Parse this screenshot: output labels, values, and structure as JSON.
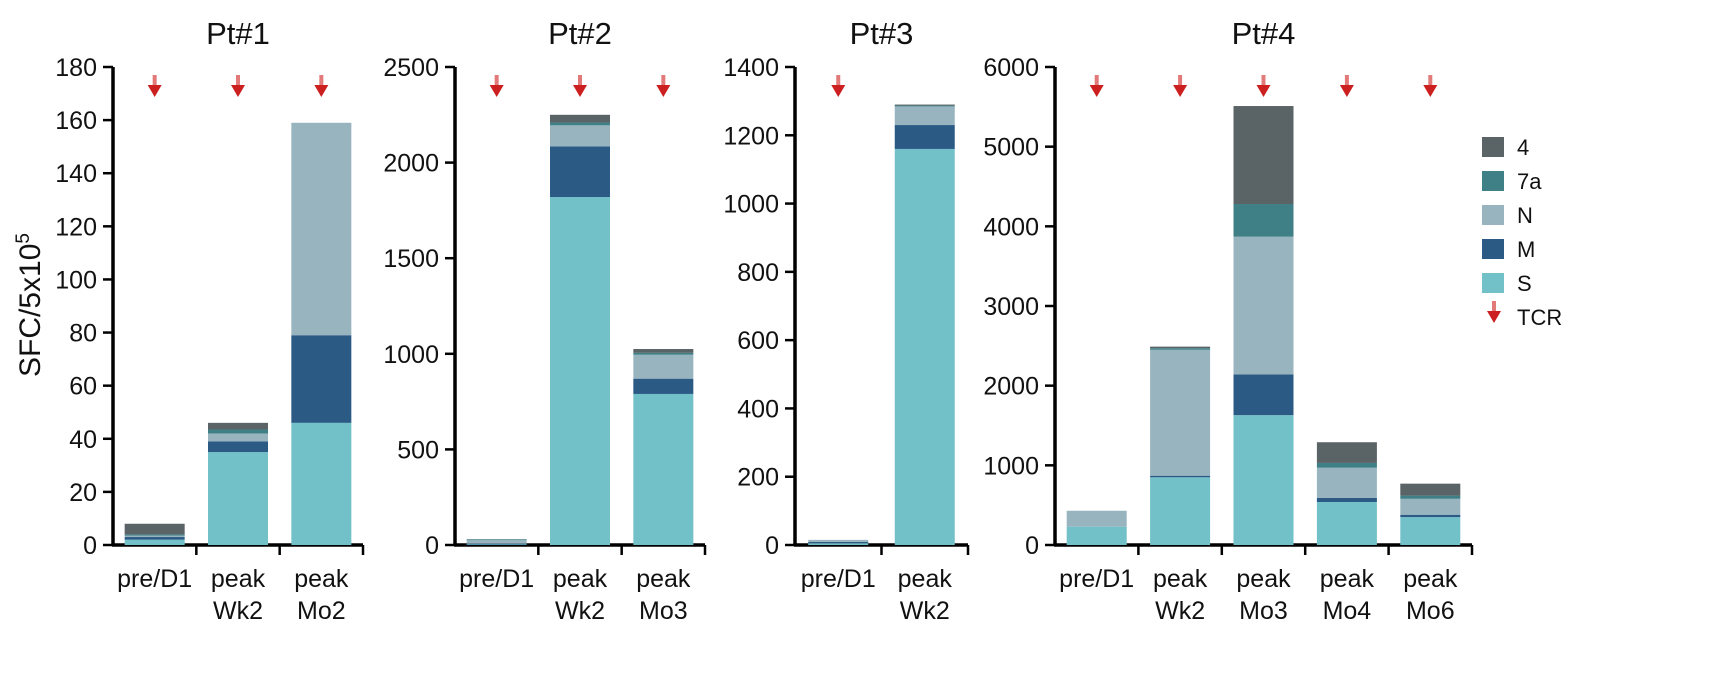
{
  "ylabel": "SFC/5x10",
  "ylabel_sup": "5",
  "colors": {
    "4": "#5a6366",
    "7a": "#3f7f86",
    "N": "#98b5bf",
    "M": "#2b5a85",
    "S": "#72c0c8",
    "TCR": "#cc1f1f"
  },
  "legend": [
    {
      "key": "4",
      "label": "4"
    },
    {
      "key": "7a",
      "label": "7a"
    },
    {
      "key": "N",
      "label": "N"
    },
    {
      "key": "M",
      "label": "M"
    },
    {
      "key": "S",
      "label": "S"
    },
    {
      "key": "TCR",
      "label": "TCR",
      "icon": "down-arrow-icon"
    }
  ],
  "chart_data": [
    {
      "type": "bar",
      "stacked": true,
      "title": "Pt#1",
      "categories": [
        [
          "pre/D1"
        ],
        [
          "peak",
          "Wk2"
        ],
        [
          "peak",
          "Mo2"
        ]
      ],
      "ylim": [
        0,
        180
      ],
      "yticks": [
        0,
        20,
        40,
        60,
        80,
        100,
        120,
        140,
        160,
        180
      ],
      "tcr_markers": [
        0,
        1,
        2
      ],
      "series": [
        {
          "name": "S",
          "values": [
            2,
            35,
            46
          ]
        },
        {
          "name": "M",
          "values": [
            1,
            4,
            33
          ]
        },
        {
          "name": "N",
          "values": [
            0.5,
            3,
            80
          ]
        },
        {
          "name": "7a",
          "values": [
            0.5,
            1.5,
            0
          ]
        },
        {
          "name": "4",
          "values": [
            4,
            2.5,
            0
          ]
        }
      ]
    },
    {
      "type": "bar",
      "stacked": true,
      "title": "Pt#2",
      "categories": [
        [
          "pre/D1"
        ],
        [
          "peak",
          "Wk2"
        ],
        [
          "peak",
          "Mo3"
        ]
      ],
      "ylim": [
        0,
        2500
      ],
      "yticks": [
        0,
        500,
        1000,
        1500,
        2000,
        2500
      ],
      "tcr_markers": [
        0,
        1,
        2
      ],
      "series": [
        {
          "name": "S",
          "values": [
            5,
            1820,
            790
          ]
        },
        {
          "name": "M",
          "values": [
            2,
            265,
            80
          ]
        },
        {
          "name": "N",
          "values": [
            20,
            110,
            125
          ]
        },
        {
          "name": "7a",
          "values": [
            3,
            15,
            10
          ]
        },
        {
          "name": "4",
          "values": [
            0,
            40,
            20
          ]
        }
      ]
    },
    {
      "type": "bar",
      "stacked": true,
      "title": "Pt#3",
      "categories": [
        [
          "pre/D1"
        ],
        [
          "peak",
          "Wk2"
        ]
      ],
      "ylim": [
        0,
        1400
      ],
      "yticks": [
        0,
        200,
        400,
        600,
        800,
        1000,
        1200,
        1400
      ],
      "tcr_markers": [
        0
      ],
      "series": [
        {
          "name": "S",
          "values": [
            5,
            1160
          ]
        },
        {
          "name": "M",
          "values": [
            4,
            70
          ]
        },
        {
          "name": "N",
          "values": [
            6,
            55
          ]
        },
        {
          "name": "7a",
          "values": [
            0,
            2
          ]
        },
        {
          "name": "4",
          "values": [
            0,
            3
          ]
        }
      ]
    },
    {
      "type": "bar",
      "stacked": true,
      "title": "Pt#4",
      "categories": [
        [
          "pre/D1"
        ],
        [
          "peak",
          "Wk2"
        ],
        [
          "peak",
          "Mo3"
        ],
        [
          "peak",
          "Mo4"
        ],
        [
          "peak",
          "Mo6"
        ]
      ],
      "ylim": [
        0,
        6000
      ],
      "yticks": [
        0,
        1000,
        2000,
        3000,
        4000,
        5000,
        6000
      ],
      "tcr_markers": [
        0,
        1,
        2,
        3,
        4
      ],
      "series": [
        {
          "name": "S",
          "values": [
            230,
            850,
            1630,
            540,
            350
          ]
        },
        {
          "name": "M",
          "values": [
            0,
            20,
            510,
            50,
            30
          ]
        },
        {
          "name": "N",
          "values": [
            200,
            1580,
            1730,
            380,
            200
          ]
        },
        {
          "name": "7a",
          "values": [
            0,
            20,
            410,
            60,
            40
          ]
        },
        {
          "name": "4",
          "values": [
            0,
            20,
            1230,
            260,
            150
          ]
        }
      ]
    }
  ]
}
